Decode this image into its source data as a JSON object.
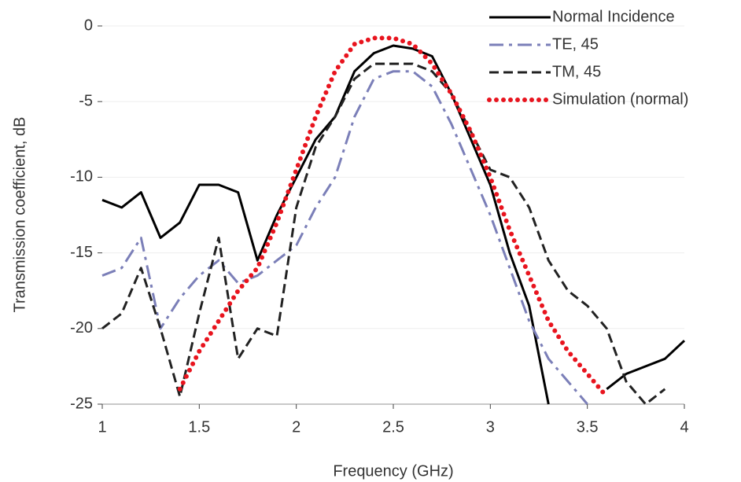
{
  "chart_data": {
    "type": "line",
    "x_label": "Frequency (GHz)",
    "y_label": "Transmission coefficient, dB",
    "x": [
      1.0,
      1.1,
      1.2,
      1.3,
      1.4,
      1.5,
      1.6,
      1.7,
      1.8,
      1.9,
      2.0,
      2.1,
      2.2,
      2.3,
      2.4,
      2.5,
      2.6,
      2.7,
      2.8,
      2.9,
      3.0,
      3.1,
      3.2,
      3.3,
      3.4,
      3.5,
      3.6,
      3.7,
      3.8,
      3.9,
      4.0
    ],
    "series": [
      {
        "name": "Normal Incidence",
        "color": "#000000",
        "dash": "solid",
        "values": [
          -11.5,
          -12,
          -11,
          -14,
          -13,
          -10.5,
          -10.5,
          -11,
          -15.5,
          -12.5,
          -10,
          -7.5,
          -6,
          -3,
          -1.8,
          -1.3,
          -1.5,
          -2,
          -4.5,
          -7.5,
          -10.5,
          -15,
          -18.5,
          -25,
          null,
          null,
          -24,
          -23,
          -22.5,
          -22,
          -20.8
        ]
      },
      {
        "name": "TE, 45",
        "color": "#7b7fb8",
        "dash": "dashdot",
        "values": [
          -16.5,
          -16,
          -14,
          -20,
          -18,
          -16.5,
          -15.5,
          -17,
          -16.5,
          -15.5,
          -14.5,
          -12,
          -10,
          -6,
          -3.5,
          -3,
          -3,
          -4,
          -6.5,
          -9.5,
          -12.5,
          -16,
          -19.5,
          -22,
          -23.5,
          -25,
          null,
          null,
          null,
          null,
          null
        ]
      },
      {
        "name": "TM, 45",
        "color": "#222222",
        "dash": "dashed",
        "values": [
          -20,
          -19,
          -16,
          -20,
          -24.5,
          -19,
          -14,
          -22,
          -20,
          -20.5,
          -12,
          -8,
          -6,
          -3.5,
          -2.5,
          -2.5,
          -2.5,
          -3,
          -4.5,
          -7,
          -9.5,
          -10,
          -12,
          -15.5,
          -17.5,
          -18.5,
          -20,
          -23.5,
          -25,
          -24,
          null
        ]
      },
      {
        "name": "Simulation (normal)",
        "color": "#e8141e",
        "dash": "dotted",
        "values": [
          null,
          null,
          null,
          null,
          -24,
          -21.5,
          -19.5,
          -17.5,
          -16,
          -13,
          -9.5,
          -6,
          -3,
          -1.2,
          -0.8,
          -0.8,
          -1.2,
          -2.5,
          -4.5,
          -7,
          -10,
          -13.5,
          -16.5,
          -19.5,
          -21.5,
          -23,
          -24.5,
          null,
          null,
          null,
          null
        ]
      }
    ],
    "xlim": [
      1,
      4
    ],
    "xticks": [
      1,
      1.5,
      2,
      2.5,
      3,
      3.5,
      4
    ],
    "ylim": [
      -25,
      0
    ],
    "yticks": [
      0,
      -5,
      -10,
      -15,
      -20,
      -25
    ],
    "grid": true,
    "legend": "top-right"
  }
}
